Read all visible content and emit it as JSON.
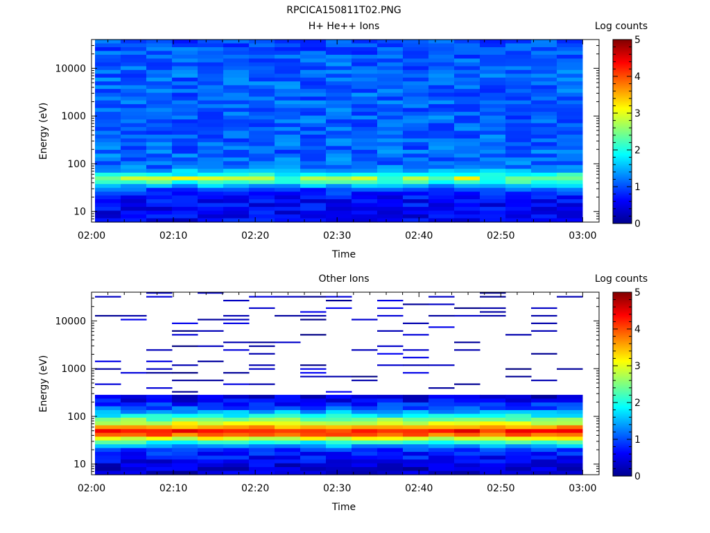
{
  "figure_title": "RPCICA150811T02.PNG",
  "panels": [
    {
      "title": "H+ He++ Ions",
      "colorbar_label": "Log counts",
      "xlabel": "Time",
      "ylabel": "Energy (eV)"
    },
    {
      "title": "Other Ions",
      "colorbar_label": "Log counts",
      "xlabel": "Time",
      "ylabel": "Energy (eV)"
    }
  ],
  "chart_data": [
    {
      "type": "heatmap",
      "title": "H+ He++ Ions",
      "xlabel": "Time",
      "ylabel": "Energy (eV)",
      "xlim": [
        "02:00",
        "03:02"
      ],
      "xticks": [
        "02:00",
        "02:10",
        "02:20",
        "02:30",
        "02:40",
        "02:50",
        "03:00"
      ],
      "yscale": "log",
      "ylim": [
        6,
        40000
      ],
      "yticks": [
        "10",
        "100",
        "1000",
        "10000"
      ],
      "colorbar": {
        "label": "Log counts",
        "range": [
          0,
          5
        ],
        "ticks": [
          "0",
          "1",
          "2",
          "3",
          "4",
          "5"
        ],
        "colormap": "jet"
      },
      "x_bins": 19,
      "energy_profile_log_counts": [
        {
          "energy_ev": 8,
          "log_counts": 0.6
        },
        {
          "energy_ev": 12,
          "log_counts": 0.6
        },
        {
          "energy_ev": 20,
          "log_counts": 0.7
        },
        {
          "energy_ev": 30,
          "log_counts": 1.0
        },
        {
          "energy_ev": 45,
          "log_counts": 2.4
        },
        {
          "energy_ev": 60,
          "log_counts": 2.0
        },
        {
          "energy_ev": 80,
          "log_counts": 1.2
        },
        {
          "energy_ev": 200,
          "log_counts": 1.1
        },
        {
          "energy_ev": 1000,
          "log_counts": 1.1
        },
        {
          "energy_ev": 10000,
          "log_counts": 1.1
        },
        {
          "energy_ev": 35000,
          "log_counts": 1.0
        }
      ],
      "peak_band": {
        "energy_ev": 50,
        "max_log_counts": 3.0,
        "time_span": [
          "02:00",
          "02:55"
        ]
      }
    },
    {
      "type": "heatmap",
      "title": "Other Ions",
      "xlabel": "Time",
      "ylabel": "Energy (eV)",
      "xlim": [
        "02:00",
        "03:02"
      ],
      "xticks": [
        "02:00",
        "02:10",
        "02:20",
        "02:30",
        "02:40",
        "02:50",
        "03:00"
      ],
      "yscale": "log",
      "ylim": [
        6,
        40000
      ],
      "yticks": [
        "10",
        "100",
        "1000",
        "10000"
      ],
      "colorbar": {
        "label": "Log counts",
        "range": [
          0,
          5
        ],
        "ticks": [
          "0",
          "1",
          "2",
          "3",
          "4",
          "5"
        ],
        "colormap": "jet"
      },
      "x_bins": 19,
      "energy_profile_log_counts": [
        {
          "energy_ev": 8,
          "log_counts": 0.4
        },
        {
          "energy_ev": 12,
          "log_counts": 0.6
        },
        {
          "energy_ev": 20,
          "log_counts": 0.9
        },
        {
          "energy_ev": 30,
          "log_counts": 2.2
        },
        {
          "energy_ev": 40,
          "log_counts": 3.8
        },
        {
          "energy_ev": 50,
          "log_counts": 4.3
        },
        {
          "energy_ev": 70,
          "log_counts": 3.0
        },
        {
          "energy_ev": 100,
          "log_counts": 2.0
        },
        {
          "energy_ev": 150,
          "log_counts": 1.0
        },
        {
          "energy_ev": 250,
          "log_counts": 0.4
        }
      ],
      "sparse_counts_above_ev": 300,
      "sparse_log_counts": 0.3
    }
  ]
}
